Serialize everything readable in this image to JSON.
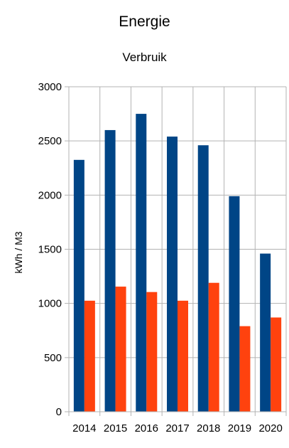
{
  "chart_data": {
    "type": "bar",
    "title": "Energie",
    "subtitle": "Verbruik",
    "xlabel": "",
    "ylabel": "kWh / M3",
    "categories": [
      "2014",
      "2015",
      "2016",
      "2017",
      "2018",
      "2019",
      "2020"
    ],
    "series": [
      {
        "values": [
          2325,
          2600,
          2750,
          2540,
          2460,
          1990,
          1460
        ],
        "color": "#004586"
      },
      {
        "values": [
          1025,
          1155,
          1105,
          1025,
          1190,
          790,
          870
        ],
        "color": "#ff420e"
      }
    ],
    "ylim": [
      0,
      3000
    ],
    "yticks": [
      "0",
      "500",
      "1000",
      "1500",
      "2000",
      "2500",
      "3000"
    ],
    "grid": true,
    "legend": "none"
  }
}
